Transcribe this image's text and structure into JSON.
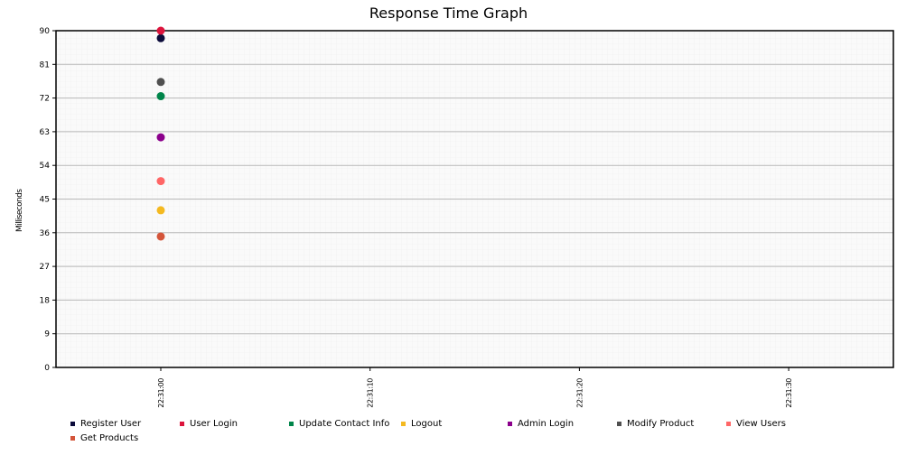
{
  "chart_data": {
    "type": "scatter",
    "title": "Response Time Graph",
    "xlabel": "",
    "ylabel": "Milliseconds",
    "ylim": [
      0,
      90
    ],
    "yticks": [
      "0",
      "9",
      "18",
      "27",
      "36",
      "45",
      "54",
      "63",
      "72",
      "81",
      "90"
    ],
    "xticks": [
      "22:31:00",
      "22:31:10",
      "22:31:20",
      "22:31:30"
    ],
    "grid": true,
    "legend_position": "bottom",
    "series": [
      {
        "name": "Register User",
        "color": "#0b0b3a",
        "points": [
          {
            "x": "22:31:00",
            "y": 88
          }
        ]
      },
      {
        "name": "User Login",
        "color": "#dc143c",
        "points": [
          {
            "x": "22:31:00",
            "y": 90
          }
        ]
      },
      {
        "name": "Update Contact Info",
        "color": "#00854a",
        "points": [
          {
            "x": "22:31:00",
            "y": 72.5
          }
        ]
      },
      {
        "name": "Logout",
        "color": "#f4b920",
        "points": [
          {
            "x": "22:31:00",
            "y": 42
          }
        ]
      },
      {
        "name": "Admin Login",
        "color": "#8b008b",
        "points": [
          {
            "x": "22:31:00",
            "y": 61.5
          }
        ]
      },
      {
        "name": "Modify Product",
        "color": "#505050",
        "points": [
          {
            "x": "22:31:00",
            "y": 76.3
          }
        ]
      },
      {
        "name": "View Users",
        "color": "#ff6666",
        "points": [
          {
            "x": "22:31:00",
            "y": 49.8
          }
        ]
      },
      {
        "name": "Get Products",
        "color": "#d4553a",
        "points": [
          {
            "x": "22:31:00",
            "y": 35
          }
        ]
      }
    ]
  }
}
